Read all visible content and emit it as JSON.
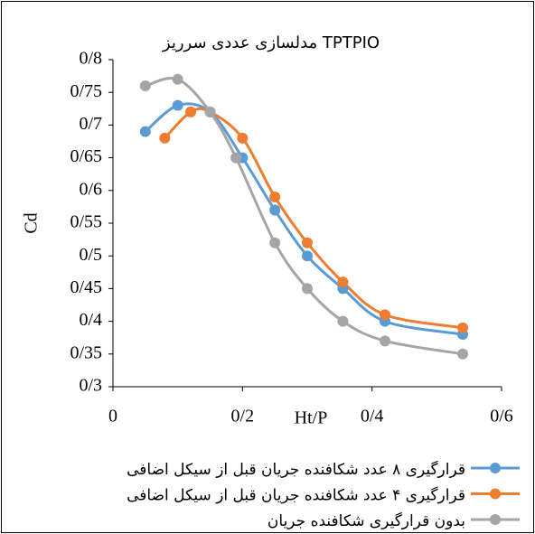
{
  "chart_data": {
    "type": "line",
    "title": "مدلسازی عددی سرریز TPTPIO",
    "x_label": "Ht/P",
    "y_label": "Cd",
    "xlim": [
      0,
      0.6
    ],
    "xticks": [
      0,
      {
        "value": 0.2,
        "label": "0/2"
      },
      {
        "value": 0.4,
        "label": "0/4"
      },
      {
        "value": 0.6,
        "label": "0/6"
      }
    ],
    "ylim": [
      0.3,
      0.8
    ],
    "yticks": [
      {
        "value": 0.3,
        "label": "0/3"
      },
      {
        "value": 0.35,
        "label": "0/35"
      },
      {
        "value": 0.4,
        "label": "0/4"
      },
      {
        "value": 0.45,
        "label": "0/45"
      },
      {
        "value": 0.5,
        "label": "0/5"
      },
      {
        "value": 0.55,
        "label": "0/55"
      },
      {
        "value": 0.6,
        "label": "0/6"
      },
      {
        "value": 0.65,
        "label": "0/65"
      },
      {
        "value": 0.7,
        "label": "0/7"
      },
      {
        "value": 0.75,
        "label": "0/75"
      },
      {
        "value": 0.8,
        "label": "0/8"
      }
    ],
    "grid": false,
    "legend": "bottom",
    "series": [
      {
        "name": "قرارگیری ۸ عدد شکافنده جریان قبل از سیکل اضافی",
        "color": "#5b9bd5",
        "x": [
          0.05,
          0.1,
          0.15,
          0.2,
          0.25,
          0.3,
          0.355,
          0.42,
          0.54
        ],
        "values": [
          0.69,
          0.73,
          0.72,
          0.65,
          0.57,
          0.5,
          0.45,
          0.4,
          0.38
        ]
      },
      {
        "name": "قرارگیری ۴ عدد شکافنده جریان قبل از سیکل اضافی",
        "color": "#ed7d31",
        "x": [
          0.08,
          0.12,
          0.15,
          0.2,
          0.25,
          0.3,
          0.355,
          0.42,
          0.54
        ],
        "values": [
          0.68,
          0.72,
          0.72,
          0.68,
          0.59,
          0.52,
          0.46,
          0.41,
          0.39
        ]
      },
      {
        "name": "بدون قرارگیری شکافنده جریان",
        "color": "#a5a5a5",
        "x": [
          0.05,
          0.1,
          0.15,
          0.19,
          0.25,
          0.3,
          0.355,
          0.42,
          0.54
        ],
        "values": [
          0.76,
          0.77,
          0.72,
          0.65,
          0.52,
          0.45,
          0.4,
          0.37,
          0.35
        ]
      }
    ]
  }
}
